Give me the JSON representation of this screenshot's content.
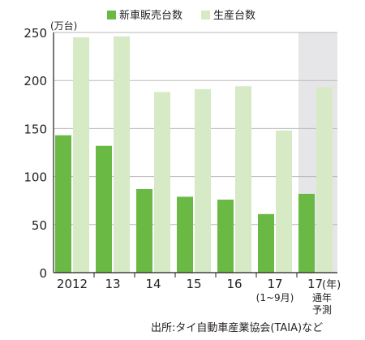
{
  "chart_data": {
    "type": "bar",
    "y_unit": "(万台)",
    "categories": [
      "2012",
      "13",
      "14",
      "15",
      "16",
      "17",
      "17"
    ],
    "category_sublabels": [
      "",
      "",
      "",
      "",
      "",
      "(1~9月)",
      "(年)"
    ],
    "forecast_note": "通年予測",
    "ylim": [
      0,
      250
    ],
    "yticks": [
      0,
      50,
      100,
      150,
      200,
      250
    ],
    "grid": true,
    "legend_position": "top-center",
    "highlight_last_category": true,
    "series": [
      {
        "name": "新車販売台数",
        "color": "#6ab945",
        "values": [
          143,
          132,
          87,
          79,
          76,
          61,
          82
        ]
      },
      {
        "name": "生産台数",
        "color": "#d6eac6",
        "values": [
          245,
          246,
          188,
          191,
          194,
          148,
          193
        ]
      }
    ]
  },
  "source_note": "出所:タイ自動車産業協会(TAIA)など"
}
